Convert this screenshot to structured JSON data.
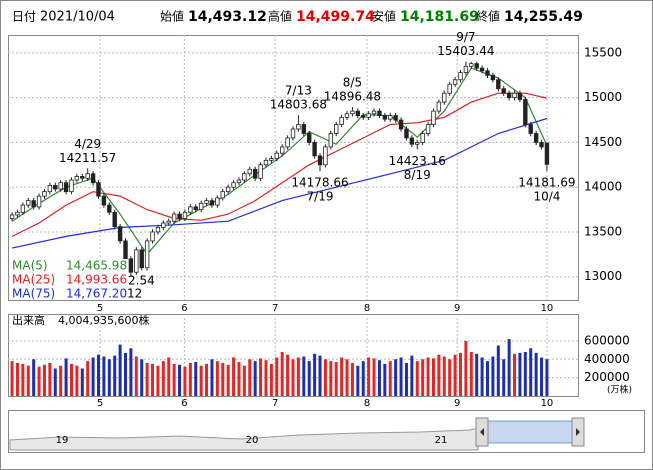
{
  "header": {
    "date_label": "日付",
    "date": "2021/10/04",
    "fields": [
      {
        "label": "始値",
        "value": "14,493.12",
        "color": "#000000"
      },
      {
        "label": "高値",
        "value": "14,499.74",
        "color": "#e00000"
      },
      {
        "label": "安値",
        "value": "14,181.69",
        "color": "#008000"
      },
      {
        "label": "終値",
        "value": "14,255.49",
        "color": "#000000"
      }
    ]
  },
  "chart_data": [
    {
      "type": "candlestick",
      "xlim": [
        -0.75,
        104.75
      ],
      "xticks": [
        {
          "value": 16.3,
          "label": "5"
        },
        {
          "value": 31.9,
          "label": "6"
        },
        {
          "value": 48.7,
          "label": "7"
        },
        {
          "value": 65.7,
          "label": "8"
        },
        {
          "value": 82.4,
          "label": "9"
        },
        {
          "value": 99,
          "label": "10"
        }
      ],
      "ylim": [
        12740,
        15700
      ],
      "yticks": [
        13000,
        13500,
        14000,
        14500,
        15000,
        15500
      ],
      "grid": true,
      "up_color": "#ffffff",
      "down_color": "#222222",
      "ohlc": [
        [
          13650,
          13720,
          13620,
          13690
        ],
        [
          13690,
          13750,
          13660,
          13720
        ],
        [
          13720,
          13830,
          13690,
          13800
        ],
        [
          13800,
          13880,
          13770,
          13850
        ],
        [
          13850,
          13880,
          13750,
          13780
        ],
        [
          13780,
          13930,
          13750,
          13900
        ],
        [
          13900,
          13980,
          13870,
          13950
        ],
        [
          13950,
          14050,
          13920,
          14020
        ],
        [
          14020,
          14050,
          13950,
          13980
        ],
        [
          13980,
          14080,
          13950,
          14050
        ],
        [
          14050,
          14080,
          13920,
          13950
        ],
        [
          13950,
          14110,
          13920,
          14080
        ],
        [
          14080,
          14150,
          14050,
          14120
        ],
        [
          14120,
          14150,
          14070,
          14100
        ],
        [
          14100,
          14211.57,
          14070,
          14150
        ],
        [
          14150,
          14180,
          14020,
          14050
        ],
        [
          14050,
          14080,
          13870,
          13900
        ],
        [
          13900,
          13930,
          13770,
          13800
        ],
        [
          13800,
          13830,
          13690,
          13720
        ],
        [
          13720,
          13750,
          13530,
          13560
        ],
        [
          13560,
          13590,
          13370,
          13400
        ],
        [
          13400,
          13430,
          13170,
          13200
        ],
        [
          13200,
          13230,
          13000,
          13050
        ],
        [
          13050,
          13330,
          13020,
          13300
        ],
        [
          13300,
          13330,
          13070,
          13100
        ],
        [
          13100,
          13430,
          13070,
          13400
        ],
        [
          13400,
          13530,
          13370,
          13500
        ],
        [
          13500,
          13580,
          13470,
          13550
        ],
        [
          13550,
          13630,
          13520,
          13600
        ],
        [
          13600,
          13650,
          13570,
          13620
        ],
        [
          13620,
          13730,
          13590,
          13700
        ],
        [
          13700,
          13730,
          13620,
          13650
        ],
        [
          13650,
          13750,
          13620,
          13720
        ],
        [
          13720,
          13810,
          13690,
          13780
        ],
        [
          13780,
          13810,
          13720,
          13750
        ],
        [
          13750,
          13850,
          13720,
          13820
        ],
        [
          13820,
          13880,
          13790,
          13850
        ],
        [
          13850,
          13880,
          13770,
          13800
        ],
        [
          13800,
          13910,
          13770,
          13880
        ],
        [
          13880,
          13980,
          13850,
          13950
        ],
        [
          13950,
          14030,
          13920,
          14000
        ],
        [
          14000,
          14080,
          13970,
          14050
        ],
        [
          14050,
          14110,
          14020,
          14080
        ],
        [
          14080,
          14180,
          14050,
          14150
        ],
        [
          14150,
          14230,
          14120,
          14200
        ],
        [
          14200,
          14230,
          14070,
          14100
        ],
        [
          14100,
          14280,
          14070,
          14250
        ],
        [
          14250,
          14330,
          14220,
          14300
        ],
        [
          14300,
          14350,
          14270,
          14320
        ],
        [
          14320,
          14410,
          14290,
          14380
        ],
        [
          14380,
          14480,
          14350,
          14450
        ],
        [
          14450,
          14580,
          14420,
          14550
        ],
        [
          14550,
          14680,
          14520,
          14650
        ],
        [
          14650,
          14803.68,
          14620,
          14700
        ],
        [
          14700,
          14730,
          14570,
          14600
        ],
        [
          14600,
          14630,
          14470,
          14500
        ],
        [
          14500,
          14530,
          14320,
          14350
        ],
        [
          14350,
          14380,
          14178.66,
          14250
        ],
        [
          14250,
          14480,
          14220,
          14450
        ],
        [
          14450,
          14630,
          14420,
          14600
        ],
        [
          14600,
          14730,
          14570,
          14700
        ],
        [
          14700,
          14810,
          14670,
          14780
        ],
        [
          14780,
          14850,
          14750,
          14820
        ],
        [
          14820,
          14896.48,
          14790,
          14850
        ],
        [
          14850,
          14880,
          14770,
          14800
        ],
        [
          14800,
          14830,
          14750,
          14780
        ],
        [
          14780,
          14850,
          14750,
          14820
        ],
        [
          14820,
          14880,
          14790,
          14850
        ],
        [
          14850,
          14880,
          14770,
          14800
        ],
        [
          14800,
          14830,
          14730,
          14760
        ],
        [
          14760,
          14830,
          14730,
          14800
        ],
        [
          14800,
          14830,
          14720,
          14750
        ],
        [
          14750,
          14780,
          14620,
          14650
        ],
        [
          14650,
          14680,
          14520,
          14550
        ],
        [
          14550,
          14580,
          14450,
          14480
        ],
        [
          14480,
          14530,
          14423.16,
          14500
        ],
        [
          14500,
          14630,
          14470,
          14600
        ],
        [
          14600,
          14730,
          14570,
          14700
        ],
        [
          14700,
          14880,
          14670,
          14850
        ],
        [
          14850,
          14980,
          14820,
          14950
        ],
        [
          14950,
          15080,
          14920,
          15050
        ],
        [
          15050,
          15180,
          15020,
          15150
        ],
        [
          15150,
          15230,
          15120,
          15200
        ],
        [
          15200,
          15310,
          15170,
          15280
        ],
        [
          15280,
          15403.44,
          15250,
          15350
        ],
        [
          15350,
          15400,
          15320,
          15380
        ],
        [
          15380,
          15400,
          15300,
          15330
        ],
        [
          15330,
          15360,
          15270,
          15300
        ],
        [
          15300,
          15330,
          15220,
          15250
        ],
        [
          15250,
          15280,
          15170,
          15200
        ],
        [
          15200,
          15230,
          15070,
          15100
        ],
        [
          15100,
          15130,
          15020,
          15050
        ],
        [
          15050,
          15080,
          14970,
          15000
        ],
        [
          15000,
          15080,
          14970,
          15050
        ],
        [
          15050,
          15080,
          14950,
          14980
        ],
        [
          14980,
          15010,
          14670,
          14700
        ],
        [
          14700,
          14730,
          14570,
          14600
        ],
        [
          14600,
          14630,
          14470,
          14500
        ],
        [
          14500,
          14530,
          14420,
          14450
        ],
        [
          14493.12,
          14499.74,
          14181.69,
          14255.49
        ]
      ],
      "series": [
        {
          "name": "MA(5)",
          "color": "#2e8b2e",
          "legend_value": "14,465.98",
          "x": [
            0,
            5,
            10,
            15,
            20,
            25,
            30,
            35,
            40,
            45,
            50,
            55,
            60,
            65,
            70,
            75,
            80,
            85,
            90,
            95,
            99
          ],
          "values": [
            13620,
            13820,
            14000,
            14100,
            13700,
            13250,
            13600,
            13760,
            13920,
            14140,
            14350,
            14620,
            14480,
            14810,
            14800,
            14560,
            14850,
            15330,
            15220,
            15000,
            14465.98
          ]
        },
        {
          "name": "MA(25)",
          "color": "#e02020",
          "legend_value": "14,993.66",
          "x": [
            0,
            5,
            10,
            15,
            20,
            25,
            30,
            35,
            40,
            45,
            50,
            55,
            60,
            65,
            70,
            75,
            80,
            85,
            90,
            95,
            99
          ],
          "values": [
            13450,
            13600,
            13800,
            13950,
            13900,
            13750,
            13650,
            13630,
            13700,
            13850,
            14050,
            14250,
            14400,
            14550,
            14700,
            14720,
            14780,
            14950,
            15050,
            15050,
            14993.66
          ]
        },
        {
          "name": "MA(75)",
          "color": "#2030d0",
          "legend_value": "14,767.20",
          "x": [
            0,
            10,
            20,
            30,
            40,
            50,
            60,
            70,
            80,
            90,
            99
          ],
          "values": [
            13320,
            13450,
            13550,
            13580,
            13620,
            13850,
            14000,
            14150,
            14300,
            14600,
            14767.2
          ]
        }
      ],
      "annotations": [
        {
          "date": "4/29",
          "x": 14,
          "value": 14211.57,
          "position": "above"
        },
        {
          "date": "7/13",
          "x": 53,
          "value": 14803.68,
          "position": "above"
        },
        {
          "date": "7/19",
          "x": 57,
          "value": 14178.66,
          "position": "below"
        },
        {
          "date": "8/5",
          "x": 63,
          "value": 14896.48,
          "position": "above"
        },
        {
          "date": "8/19",
          "x": 75,
          "value": 14423.16,
          "position": "below"
        },
        {
          "date": "9/7",
          "x": 84,
          "value": 15403.44,
          "position": "above"
        },
        {
          "date": "10/4",
          "x": 99,
          "value": 14181.69,
          "position": "below"
        }
      ],
      "partial_labels": [
        "2.54",
        "12"
      ]
    },
    {
      "type": "bar",
      "title": "出来高",
      "subtitle": "4,004,935,600株",
      "unit": "(万株)",
      "xlim": [
        -0.75,
        104.75
      ],
      "xticks": [
        {
          "value": 16.3,
          "label": "5"
        },
        {
          "value": 31.9,
          "label": "6"
        },
        {
          "value": 48.7,
          "label": "7"
        },
        {
          "value": 65.7,
          "label": "8"
        },
        {
          "value": 82.4,
          "label": "9"
        },
        {
          "value": 99,
          "label": "10"
        }
      ],
      "ylim": [
        0,
        850000
      ],
      "yticks": [
        200000,
        400000,
        600000
      ],
      "up_color": "#e02828",
      "down_color": "#1f2fa8",
      "values": [
        380000,
        360000,
        350000,
        330000,
        400000,
        320000,
        340000,
        360000,
        300000,
        330000,
        410000,
        350000,
        330000,
        300000,
        380000,
        420000,
        450000,
        430000,
        400000,
        440000,
        560000,
        470000,
        520000,
        430000,
        400000,
        360000,
        350000,
        330000,
        380000,
        420000,
        350000,
        340000,
        320000,
        360000,
        370000,
        330000,
        350000,
        400000,
        380000,
        360000,
        340000,
        420000,
        370000,
        330000,
        400000,
        380000,
        410000,
        390000,
        350000,
        420000,
        480000,
        450000,
        400000,
        420000,
        430000,
        380000,
        460000,
        440000,
        400000,
        380000,
        370000,
        420000,
        400000,
        360000,
        330000,
        380000,
        420000,
        410000,
        390000,
        350000,
        380000,
        400000,
        420000,
        360000,
        440000,
        380000,
        400000,
        420000,
        410000,
        450000,
        430000,
        400000,
        450000,
        470000,
        600000,
        480000,
        460000,
        420000,
        380000,
        430000,
        550000,
        400000,
        620000,
        460000,
        470000,
        480000,
        520000,
        470000,
        420000,
        400494
      ]
    }
  ],
  "navigator": {
    "labels": [
      "19",
      "20",
      "21"
    ]
  }
}
